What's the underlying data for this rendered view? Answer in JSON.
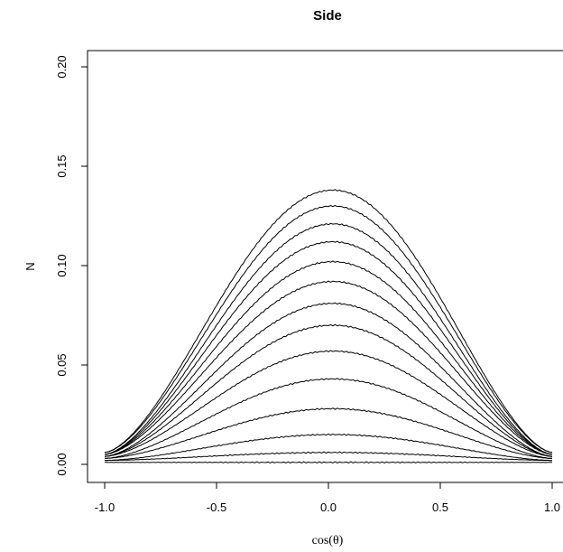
{
  "chart_data": {
    "type": "line",
    "title": "Side",
    "xlabel": "cos(θ)",
    "ylabel": "N",
    "xlim": [
      -1.0,
      1.0
    ],
    "ylim": [
      0.0,
      0.2
    ],
    "x_ticks": [
      "-1.0",
      "-0.5",
      "0.0",
      "0.5",
      "1.0"
    ],
    "y_ticks": [
      "0.00",
      "0.05",
      "0.10",
      "0.15",
      "0.20"
    ],
    "grid": false,
    "legend": "none",
    "line_color": "#000000",
    "series_peak_x": 0.02,
    "series": [
      {
        "edge": 0.001,
        "peak": 0.001
      },
      {
        "edge": 0.002,
        "peak": 0.006
      },
      {
        "edge": 0.002,
        "peak": 0.015
      },
      {
        "edge": 0.003,
        "peak": 0.028
      },
      {
        "edge": 0.003,
        "peak": 0.043
      },
      {
        "edge": 0.004,
        "peak": 0.057
      },
      {
        "edge": 0.004,
        "peak": 0.07
      },
      {
        "edge": 0.004,
        "peak": 0.081
      },
      {
        "edge": 0.005,
        "peak": 0.092
      },
      {
        "edge": 0.005,
        "peak": 0.102
      },
      {
        "edge": 0.005,
        "peak": 0.112
      },
      {
        "edge": 0.005,
        "peak": 0.121
      },
      {
        "edge": 0.006,
        "peak": 0.13
      },
      {
        "edge": 0.006,
        "peak": 0.138
      }
    ]
  }
}
